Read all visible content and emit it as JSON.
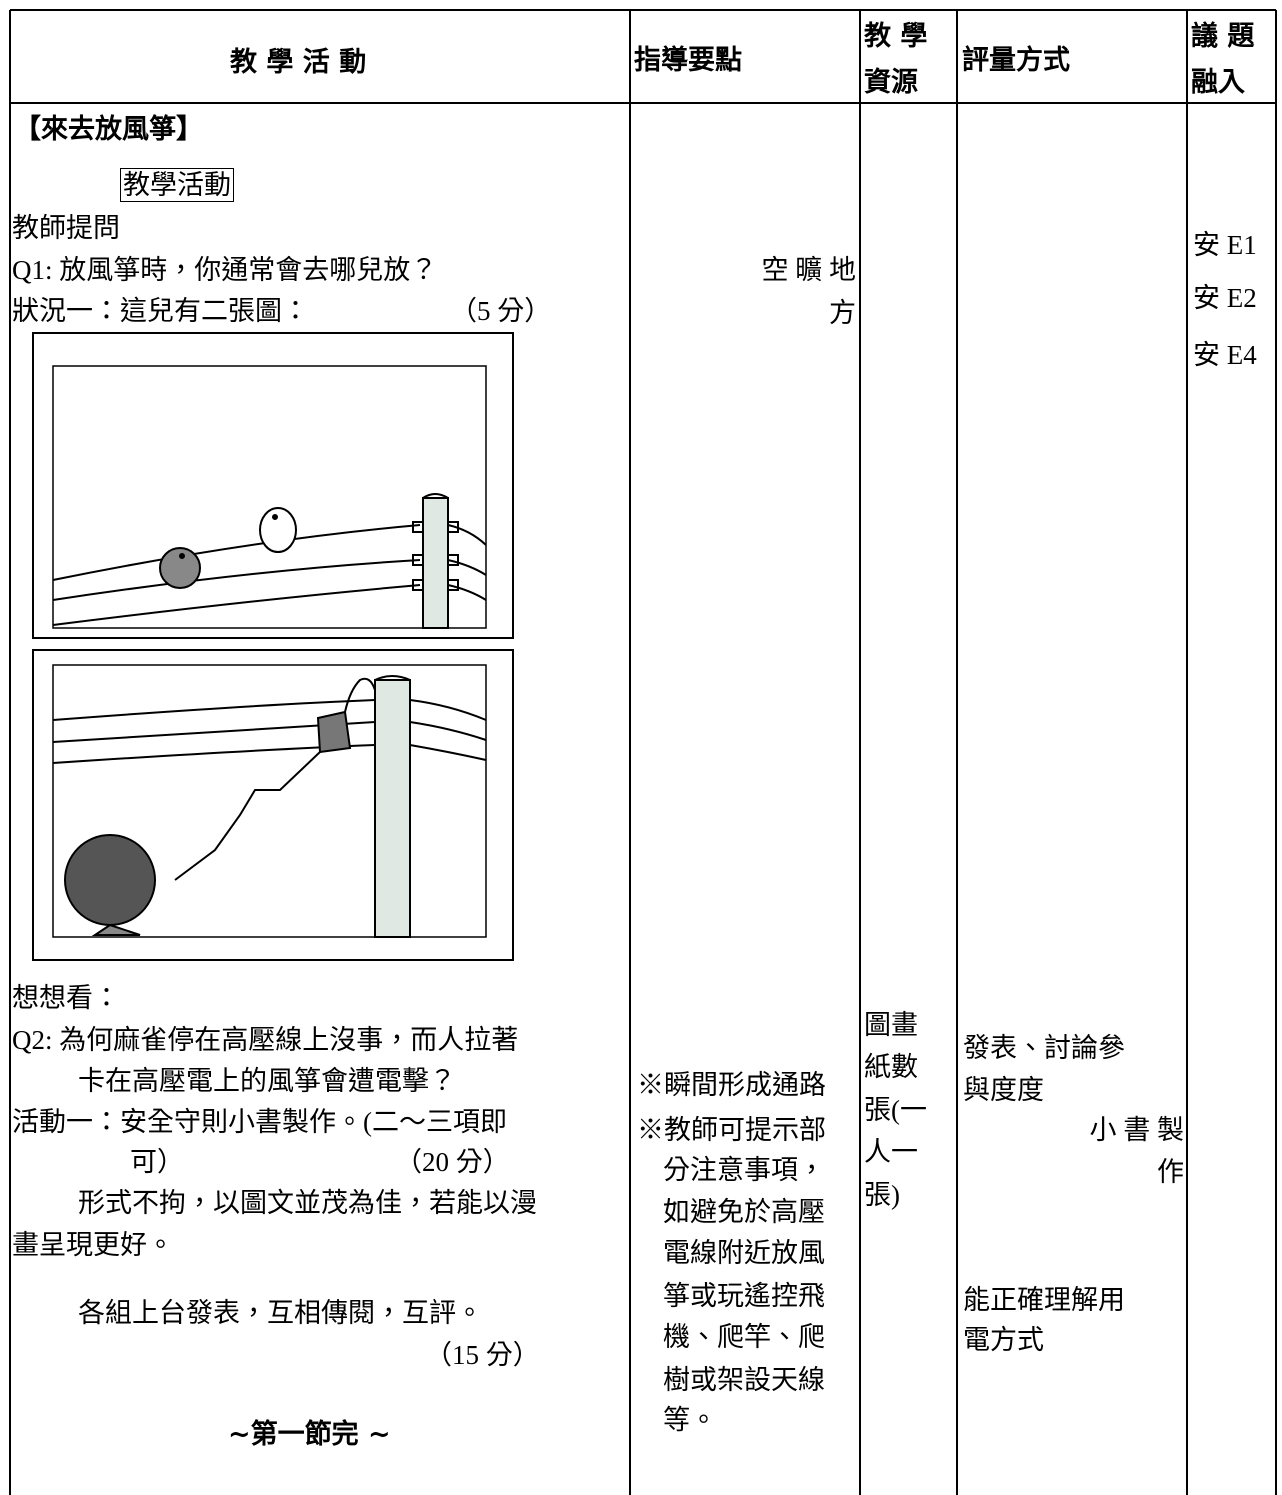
{
  "header": {
    "activity": "教 學 活 動",
    "guidance": "指導要點",
    "resources": [
      "教 學",
      "資源"
    ],
    "assessment": "評量方式",
    "issues": [
      "議 題",
      "融入"
    ]
  },
  "activity": {
    "title": "【來去放風箏】",
    "label": "教學活動",
    "lines": [
      "教師提問",
      "Q1: 放風箏時，你通常會去哪兒放？",
      "狀況一：這兒有二張圖：",
      "（5 分）",
      "想想看：",
      "Q2: 為何麻雀停在高壓線上沒事，而人拉著",
      "卡在高壓電上的風箏會遭電擊？",
      "活動一：安全守則小書製作。(二～三項即",
      "可）",
      "（20 分）",
      "形式不拘，以圖文並茂為佳，若能以漫",
      "畫呈現更好。",
      "各組上台發表，互相傳閱，互評。",
      "（15 分）",
      "~第一節完 ~"
    ]
  },
  "guidance": {
    "lines": [
      "空 曠 地",
      "方",
      "※瞬間形成通路",
      "※教師可提示部",
      "分注意事項，",
      "如避免於高壓",
      "電線附近放風",
      "箏或玩遙控飛",
      "機、爬竿、爬",
      "樹或架設天線",
      "等。"
    ]
  },
  "resources": {
    "lines": [
      "圖畫",
      "紙數",
      "張(一",
      "人一",
      "張)"
    ]
  },
  "assessment": {
    "lines": [
      "發表、討論參",
      "與度度",
      "小 書 製",
      "作",
      "能正確理解用",
      "電方式"
    ]
  },
  "issues": [
    "安 E1",
    "安 E2",
    "安 E4"
  ]
}
